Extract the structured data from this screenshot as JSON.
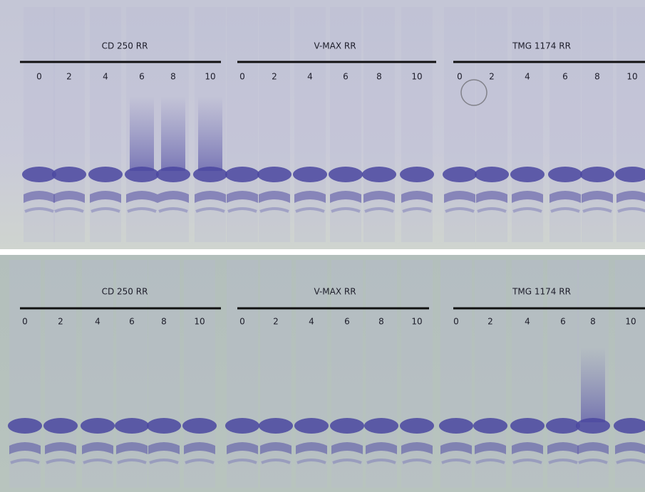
{
  "panels": [
    {
      "groups": [
        {
          "label": "CD 250 RR",
          "lanes": [
            "0",
            "2",
            "4",
            "6",
            "8",
            "10"
          ]
        },
        {
          "label": "V-MAX RR",
          "lanes": [
            "0",
            "2",
            "4",
            "6",
            "8",
            "10"
          ]
        },
        {
          "label": "TMG 1174 RR",
          "lanes": [
            "0",
            "2",
            "4",
            "6",
            "8",
            "10"
          ]
        }
      ]
    },
    {
      "groups": [
        {
          "label": "CD 250 RR",
          "lanes": [
            "0",
            "2",
            "4",
            "6",
            "8",
            "10"
          ]
        },
        {
          "label": "V-MAX RR",
          "lanes": [
            "0",
            "2",
            "4",
            "6",
            "8",
            "10"
          ]
        },
        {
          "label": "TMG 1174 RR",
          "lanes": [
            "0",
            "2",
            "4",
            "6",
            "8",
            "10"
          ]
        }
      ]
    }
  ]
}
